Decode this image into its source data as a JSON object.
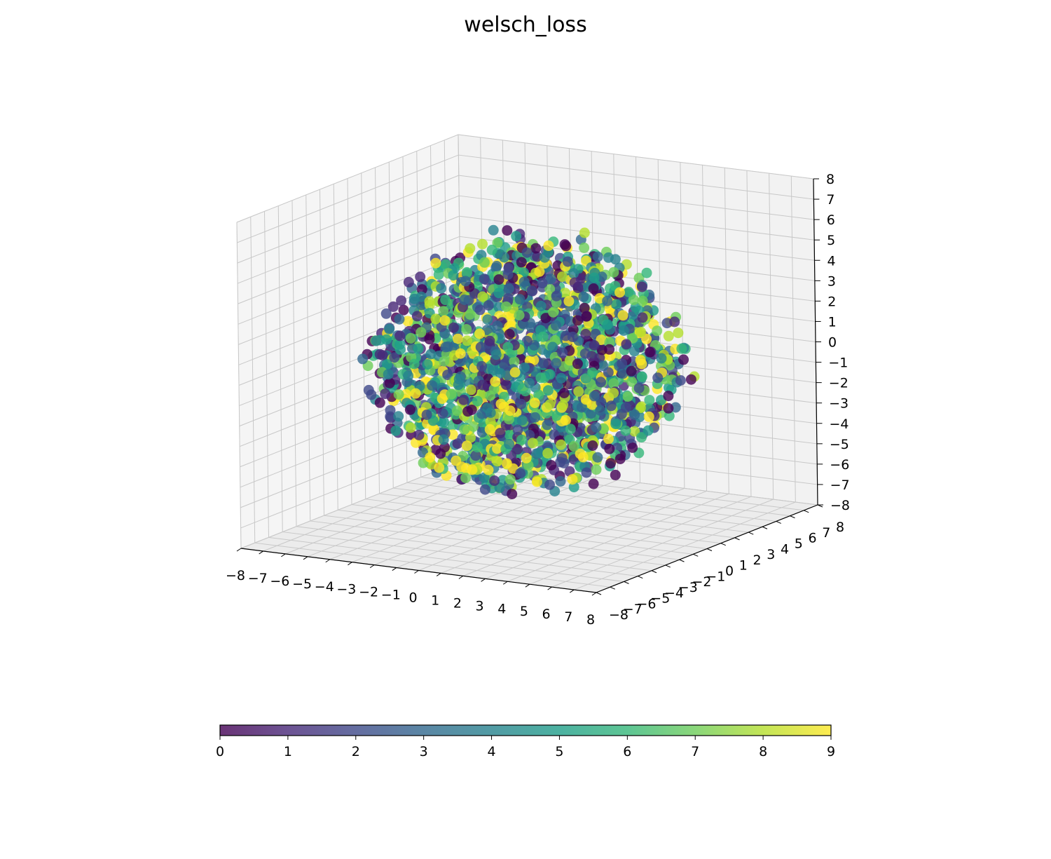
{
  "chart_data": {
    "type": "scatter",
    "projection": "3d",
    "title": "welsch_loss",
    "xlabel": "",
    "ylabel": "",
    "zlabel": "",
    "xlim": [
      -8,
      8
    ],
    "ylim": [
      -8,
      8
    ],
    "zlim": [
      -8,
      8
    ],
    "x_ticks": [
      "−8",
      "−7",
      "−6",
      "−5",
      "−4",
      "−3",
      "−2",
      "−1",
      "0",
      "1",
      "2",
      "3",
      "4",
      "5",
      "6",
      "7",
      "8"
    ],
    "y_ticks": [
      "−8",
      "−7",
      "−6",
      "−5",
      "−4",
      "−3",
      "−2",
      "−1",
      "0",
      "1",
      "2",
      "3",
      "4",
      "5",
      "6",
      "7",
      "8"
    ],
    "z_ticks": [
      "−8",
      "−7",
      "−6",
      "−5",
      "−4",
      "−3",
      "−2",
      "−1",
      "0",
      "1",
      "2",
      "3",
      "4",
      "5",
      "6",
      "7",
      "8"
    ],
    "grid": true,
    "point_distribution": "roughly spherical cloud centred at origin, radius about 6",
    "point_count_estimate": 2000,
    "color_value_range": [
      0,
      9
    ],
    "colormap": "viridis",
    "point_alpha": 0.8,
    "colorbar": {
      "orientation": "horizontal",
      "placement": "bottom",
      "min": 0,
      "max": 9,
      "ticks": [
        "0",
        "1",
        "2",
        "3",
        "4",
        "5",
        "6",
        "7",
        "8",
        "9"
      ]
    }
  }
}
